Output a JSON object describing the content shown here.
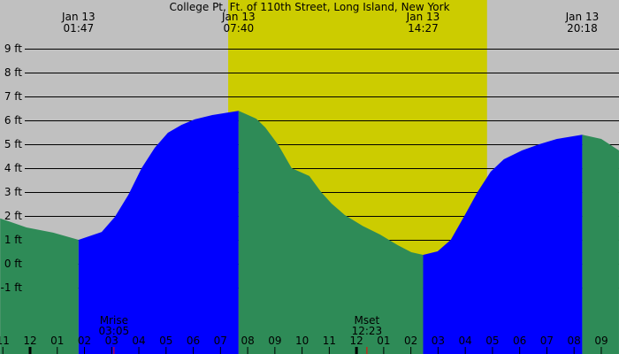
{
  "chart_data": {
    "type": "area",
    "title": "College Pt, Ft. of 110th Street, Long Island, New York",
    "y_unit": "ft",
    "ylim": [
      -2,
      9.5
    ],
    "y_ticks": [
      9,
      8,
      7,
      6,
      5,
      4,
      3,
      2,
      1,
      0,
      -1
    ],
    "y_tick_labels": [
      "9 ft",
      "8 ft",
      "7 ft",
      "6 ft",
      "5 ft",
      "4 ft",
      "3 ft",
      "2 ft",
      "1 ft",
      "0 ft",
      "-1 ft"
    ],
    "grid": true,
    "x_tick_labels": [
      "11",
      "12",
      "01",
      "02",
      "03",
      "04",
      "05",
      "06",
      "07",
      "08",
      "09",
      "10",
      "11",
      "12",
      "01",
      "02",
      "03",
      "04",
      "05",
      "06",
      "07",
      "08",
      "09"
    ],
    "x_tick_times": [
      "Jan 12 23:00",
      "Jan 13 00:00",
      "Jan 13 01:00",
      "Jan 13 02:00",
      "Jan 13 03:00",
      "Jan 13 04:00",
      "Jan 13 05:00",
      "Jan 13 06:00",
      "Jan 13 07:00",
      "Jan 13 08:00",
      "Jan 13 09:00",
      "Jan 13 10:00",
      "Jan 13 11:00",
      "Jan 13 12:00",
      "Jan 13 13:00",
      "Jan 13 14:00",
      "Jan 13 15:00",
      "Jan 13 16:00",
      "Jan 13 17:00",
      "Jan 13 18:00",
      "Jan 13 19:00",
      "Jan 13 20:00",
      "Jan 13 21:00"
    ],
    "daylight": {
      "start": "Jan 13 07:17",
      "end": "Jan 13 16:48"
    },
    "extremes": [
      {
        "date": "Jan 13",
        "time": "01:47",
        "type": "low",
        "height": 1.0
      },
      {
        "date": "Jan 13",
        "time": "07:40",
        "type": "high",
        "height": 6.4
      },
      {
        "date": "Jan 13",
        "time": "14:27",
        "type": "low",
        "height": 0.37
      },
      {
        "date": "Jan 13",
        "time": "20:18",
        "type": "high",
        "height": 5.4
      }
    ],
    "moon": [
      {
        "label": "Mrise",
        "time": "03:05"
      },
      {
        "label": "Mset",
        "time": "12:23"
      }
    ],
    "points": [
      [
        "Jan 12 22:54",
        1.9
      ],
      [
        "Jan 12 23:52",
        1.52
      ],
      [
        "Jan 13 00:51",
        1.3
      ],
      [
        "Jan 13 01:47",
        1.0
      ],
      [
        "Jan 13 02:38",
        1.33
      ],
      [
        "Jan 13 03:07",
        1.96
      ],
      [
        "Jan 13 03:37",
        2.89
      ],
      [
        "Jan 13 04:06",
        4.0
      ],
      [
        "Jan 13 04:35",
        4.85
      ],
      [
        "Jan 13 05:04",
        5.48
      ],
      [
        "Jan 13 05:34",
        5.81
      ],
      [
        "Jan 13 06:03",
        6.04
      ],
      [
        "Jan 13 06:42",
        6.22
      ],
      [
        "Jan 13 07:40",
        6.4
      ],
      [
        "Jan 13 08:19",
        6.07
      ],
      [
        "Jan 13 08:39",
        5.7
      ],
      [
        "Jan 13 09:08",
        4.96
      ],
      [
        "Jan 13 09:37",
        4.0
      ],
      [
        "Jan 13 10:16",
        3.67
      ],
      [
        "Jan 13 10:42",
        3.0
      ],
      [
        "Jan 13 11:05",
        2.52
      ],
      [
        "Jan 13 11:34",
        2.04
      ],
      [
        "Jan 13 12:13",
        1.59
      ],
      [
        "Jan 13 12:52",
        1.22
      ],
      [
        "Jan 13 13:31",
        0.78
      ],
      [
        "Jan 13 14:01",
        0.48
      ],
      [
        "Jan 13 14:27",
        0.37
      ],
      [
        "Jan 13 14:59",
        0.52
      ],
      [
        "Jan 13 15:28",
        1.0
      ],
      [
        "Jan 13 15:58",
        2.0
      ],
      [
        "Jan 13 16:27",
        3.0
      ],
      [
        "Jan 13 16:56",
        3.85
      ],
      [
        "Jan 13 17:25",
        4.37
      ],
      [
        "Jan 13 18:05",
        4.74
      ],
      [
        "Jan 13 18:43",
        5.0
      ],
      [
        "Jan 13 19:22",
        5.22
      ],
      [
        "Jan 13 20:18",
        5.4
      ],
      [
        "Jan 13 21:00",
        5.22
      ],
      [
        "Jan 13 21:39",
        4.74
      ]
    ],
    "colors": {
      "background": "#c0c0c0",
      "daylight": "#cccc00",
      "rising": "#0000ff",
      "falling": "#2e8b57",
      "moon_tick": "#ff0000",
      "grid": "#000000"
    }
  }
}
